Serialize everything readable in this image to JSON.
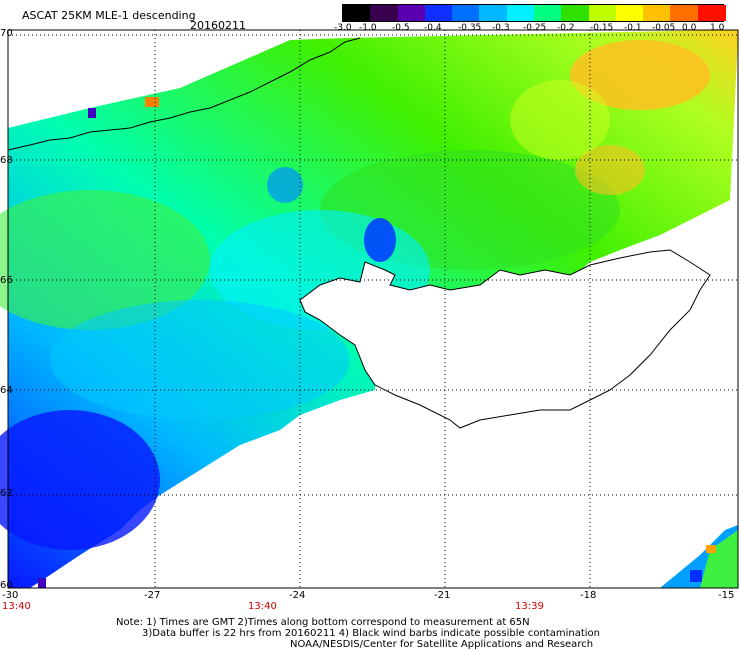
{
  "header": {
    "title": "ASCAT 25KM MLE-1 descending",
    "date": "20160211"
  },
  "colorbar": {
    "ticks": [
      "-3.0",
      "-1.0",
      "-0.5",
      "-0.4",
      "-0.35",
      "-0.3",
      "-0.25",
      "-0.2",
      "-0.15",
      "-0.1",
      "-0.05",
      "0.0",
      "1.0"
    ],
    "colors": [
      "#000000",
      "#3a0050",
      "#5a00b0",
      "#1030ff",
      "#0070ff",
      "#00b8ff",
      "#00f0ff",
      "#00ff80",
      "#30e000",
      "#c0ff00",
      "#ffff00",
      "#ffc000",
      "#ff7000",
      "#ff1000"
    ]
  },
  "map": {
    "lat_labels": [
      "70",
      "68",
      "66",
      "64",
      "62",
      "60"
    ],
    "lon_labels": [
      "-30",
      "-27",
      "-24",
      "-21",
      "-18",
      "-15"
    ],
    "times": [
      "13:40",
      "13:40",
      "13:39"
    ]
  },
  "notes": {
    "line1": "Note: 1) Times are GMT 2)Times along bottom correspond to measurement at 65N",
    "line2": "3)Data buffer is 22 hrs from 20160211 4) Black wind barbs indicate possible contamination",
    "line3": "NOAA/NESDIS/Center for Satellite Applications and Research"
  },
  "colors": {
    "land": "#ffffff",
    "coast": "#000000",
    "grid": "#000000",
    "time_label": "#d00000"
  }
}
